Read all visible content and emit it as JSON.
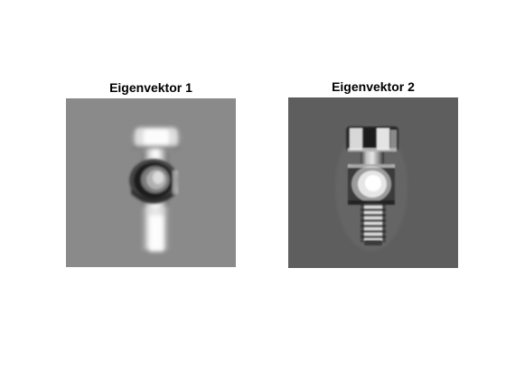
{
  "panels": [
    {
      "title": "Eigenvektor 1",
      "background_color": "#8a8a8a"
    },
    {
      "title": "Eigenvektor 2",
      "background_color": "#5e5e5e"
    }
  ]
}
